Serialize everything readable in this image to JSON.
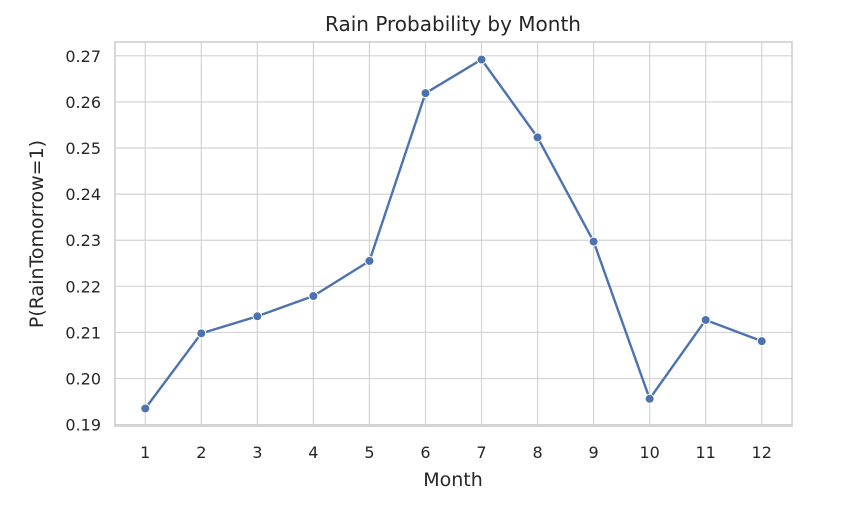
{
  "chart_data": {
    "type": "line",
    "title": "Rain Probability by Month",
    "xlabel": "Month",
    "ylabel": "P(RainTomorrow=1)",
    "x": [
      1,
      2,
      3,
      4,
      5,
      6,
      7,
      8,
      9,
      10,
      11,
      12
    ],
    "y": [
      0.1935,
      0.2098,
      0.2135,
      0.2179,
      0.2255,
      0.2619,
      0.2692,
      0.2523,
      0.2297,
      0.1956,
      0.2127,
      0.2081
    ],
    "xticks": [
      "1",
      "2",
      "3",
      "4",
      "5",
      "6",
      "7",
      "8",
      "9",
      "10",
      "11",
      "12"
    ],
    "yticks": [
      "0.19",
      "0.20",
      "0.21",
      "0.22",
      "0.23",
      "0.24",
      "0.25",
      "0.26",
      "0.27"
    ],
    "xlim": [
      0.46,
      12.54
    ],
    "ylim": [
      0.1897,
      0.273
    ],
    "grid": true,
    "line_color": "#4c72b0",
    "grid_color": "#d3d3d3",
    "frame_color": "#cccccc"
  }
}
